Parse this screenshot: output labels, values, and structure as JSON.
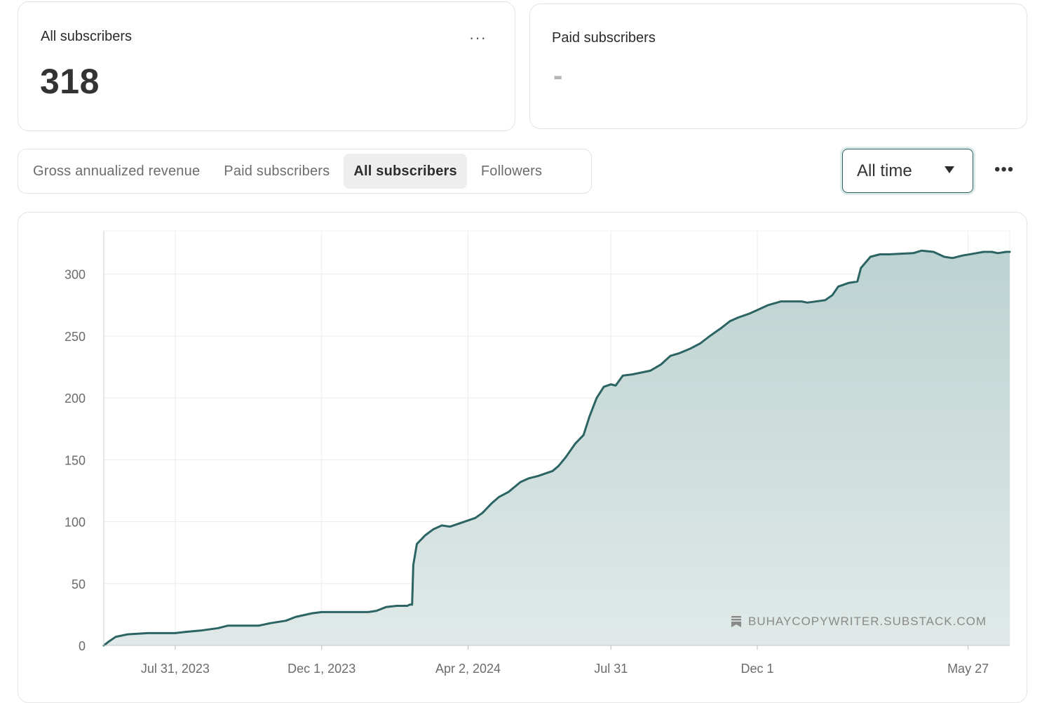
{
  "cards": {
    "all": {
      "title": "All subscribers",
      "value": "318",
      "menu": "···"
    },
    "paid": {
      "title": "Paid subscribers",
      "value": "-"
    }
  },
  "tabs": [
    {
      "label": "Gross annualized revenue",
      "active": false
    },
    {
      "label": "Paid subscribers",
      "active": false
    },
    {
      "label": "All subscribers",
      "active": true
    },
    {
      "label": "Followers",
      "active": false
    }
  ],
  "range": {
    "label": "All time"
  },
  "top_menu": "•••",
  "watermark": "BUHAYCOPYWRITER.SUBSTACK.COM",
  "colors": {
    "line": "#2b6463",
    "fill_top": "#bcd3d1",
    "fill_bottom": "#e0e9e8",
    "accent": "#2a5f5e"
  },
  "chart_data": {
    "type": "area",
    "xlabel": "",
    "ylabel": "",
    "ylim": [
      0,
      335
    ],
    "yticks": [
      0,
      50,
      100,
      150,
      200,
      250,
      300
    ],
    "xlim": [
      "2023-06-01",
      "2025-07-01"
    ],
    "xticks": [
      {
        "date": "2023-07-31",
        "label": "Jul 31, 2023"
      },
      {
        "date": "2023-12-01",
        "label": "Dec 1, 2023"
      },
      {
        "date": "2024-04-02",
        "label": "Apr 2, 2024"
      },
      {
        "date": "2024-07-31",
        "label": "Jul 31"
      },
      {
        "date": "2024-12-01",
        "label": "Dec 1"
      },
      {
        "date": "2025-05-27",
        "label": "May 27"
      }
    ],
    "grid": true,
    "series": [
      {
        "x": [
          "2023-06-01",
          "2023-06-05",
          "2023-06-11",
          "2023-06-21",
          "2023-07-08",
          "2023-07-11",
          "2023-07-31",
          "2023-08-09",
          "2023-08-21",
          "2023-09-05",
          "2023-09-13",
          "2023-10-09",
          "2023-10-19",
          "2023-11-01",
          "2023-11-09",
          "2023-11-23",
          "2023-12-01",
          "2024-01-09",
          "2024-01-16",
          "2024-01-24",
          "2024-02-02",
          "2024-02-11",
          "2024-02-13",
          "2024-02-15",
          "2024-02-16",
          "2024-02-19",
          "2024-02-26",
          "2024-03-04",
          "2024-03-11",
          "2024-03-18",
          "2024-03-24",
          "2024-04-02",
          "2024-04-08",
          "2024-04-14",
          "2024-04-22",
          "2024-04-28",
          "2024-05-06",
          "2024-05-16",
          "2024-05-23",
          "2024-05-31",
          "2024-06-06",
          "2024-06-12",
          "2024-06-17",
          "2024-06-23",
          "2024-07-01",
          "2024-07-08",
          "2024-07-13",
          "2024-07-19",
          "2024-07-25",
          "2024-07-31",
          "2024-08-04",
          "2024-08-10",
          "2024-08-18",
          "2024-09-02",
          "2024-09-11",
          "2024-09-19",
          "2024-09-26",
          "2024-10-06",
          "2024-10-14",
          "2024-10-22",
          "2024-10-31",
          "2024-11-08",
          "2024-11-15",
          "2024-11-24",
          "2024-12-01",
          "2024-12-10",
          "2024-12-21",
          "2025-01-07",
          "2025-01-12",
          "2025-01-27",
          "2025-02-02",
          "2025-02-07",
          "2025-02-16",
          "2025-02-23",
          "2025-02-26",
          "2025-03-06",
          "2025-03-14",
          "2025-03-22",
          "2025-04-11",
          "2025-04-18",
          "2025-04-28",
          "2025-05-07",
          "2025-05-14",
          "2025-05-22",
          "2025-06-03",
          "2025-06-09",
          "2025-06-16",
          "2025-06-21",
          "2025-06-28",
          "2025-07-01"
        ],
        "y": [
          0,
          3,
          7,
          9,
          10,
          10,
          10,
          11,
          12,
          14,
          16,
          16,
          18,
          20,
          23,
          26,
          27,
          27,
          28,
          31,
          32,
          32,
          33,
          33,
          65,
          82,
          89,
          94,
          97,
          96,
          98,
          101,
          103,
          107,
          115,
          120,
          124,
          132,
          135,
          137,
          139,
          141,
          145,
          152,
          163,
          170,
          185,
          200,
          209,
          211,
          210,
          218,
          219,
          222,
          227,
          234,
          236,
          240,
          244,
          250,
          256,
          262,
          265,
          268,
          271,
          275,
          278,
          278,
          277,
          279,
          283,
          290,
          293,
          294,
          305,
          314,
          316,
          316,
          317,
          319,
          318,
          314,
          313,
          315,
          317,
          318,
          318,
          317,
          318,
          318
        ]
      }
    ]
  }
}
